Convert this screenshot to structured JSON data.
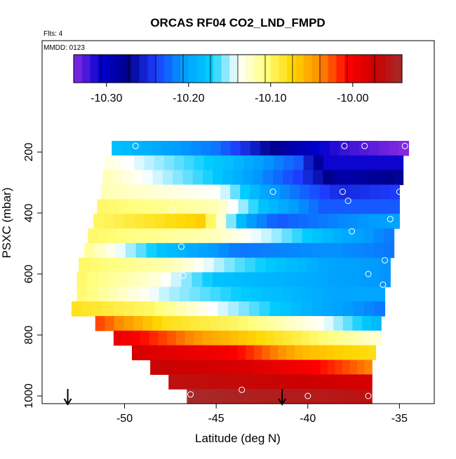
{
  "chart_data": {
    "type": "heatmap",
    "title": "ORCAS RF04 CO2_LND_FMPD",
    "annotations": {
      "flights": "Flts: 4",
      "date": "MMDD: 0123"
    },
    "xlabel": "Latitude (deg N)",
    "ylabel": "PSXC (mbar)",
    "xlim": [
      -54.5,
      -33.1
    ],
    "ylim": [
      1000,
      0
    ],
    "x_ticks": [
      -50,
      -45,
      -40,
      -35
    ],
    "x_tick_labels": [
      "-50",
      "-45",
      "-40",
      "-35"
    ],
    "y_ticks": [
      200,
      400,
      600,
      800,
      1000
    ],
    "y_tick_labels": [
      "200",
      "400",
      "600",
      "800",
      "1000"
    ],
    "colorbar": {
      "range": [
        -10.34,
        -9.94
      ],
      "ticks": [
        -10.3,
        -10.2,
        -10.1,
        -10.0
      ],
      "tick_labels": [
        "-10.30",
        "-10.20",
        "-10.10",
        "-10.00"
      ],
      "colors": [
        "#8a2be2",
        "#0000cd",
        "#00008b",
        "#1e3cff",
        "#009cff",
        "#00ccff",
        "#ffffff",
        "#ffff80",
        "#ffd700",
        "#ff8c00",
        "#ff0000",
        "#cc0000",
        "#a52a2a"
      ]
    },
    "rows": [
      {
        "p": 180,
        "x0": -50.7,
        "x1": -34.5,
        "stops": [
          [
            0,
            -10.18
          ],
          [
            0.35,
            -10.22
          ],
          [
            0.6,
            -10.29
          ],
          [
            0.78,
            -10.32
          ],
          [
            1,
            -10.34
          ]
        ]
      },
      {
        "p": 205,
        "x0": -51.1,
        "x1": -34.8,
        "stops": [
          [
            0,
            -10.13
          ],
          [
            0.4,
            -10.18
          ],
          [
            0.65,
            -10.23
          ],
          [
            0.75,
            -10.31
          ],
          [
            1,
            -10.31
          ]
        ]
      },
      {
        "p": 230,
        "x0": -51.2,
        "x1": -34.8,
        "stops": [
          [
            0,
            -10.12
          ],
          [
            0.35,
            -10.17
          ],
          [
            0.65,
            -10.24
          ],
          [
            0.8,
            -10.29
          ],
          [
            1,
            -10.27
          ]
        ]
      },
      {
        "p": 255,
        "x0": -51.3,
        "x1": -35.0,
        "stops": [
          [
            0,
            -10.12
          ],
          [
            0.4,
            -10.14
          ],
          [
            0.55,
            -10.2
          ],
          [
            0.8,
            -10.25
          ],
          [
            1,
            -10.24
          ]
        ]
      },
      {
        "p": 280,
        "x0": -51.5,
        "x1": -35.0,
        "stops": [
          [
            0,
            -10.1
          ],
          [
            0.4,
            -10.12
          ],
          [
            0.55,
            -10.18
          ],
          [
            0.75,
            -10.23
          ],
          [
            1,
            -10.23
          ]
        ]
      },
      {
        "p": 305,
        "x0": -51.7,
        "x1": -35.0,
        "stops": [
          [
            0,
            -10.1
          ],
          [
            0.35,
            -10.07
          ],
          [
            0.5,
            -10.2
          ],
          [
            0.6,
            -10.23
          ],
          [
            1,
            -10.2
          ]
        ]
      },
      {
        "p": 330,
        "x0": -52.0,
        "x1": -35.3,
        "stops": [
          [
            0,
            -10.1
          ],
          [
            0.4,
            -10.12
          ],
          [
            0.6,
            -10.15
          ],
          [
            0.8,
            -10.19
          ],
          [
            1,
            -10.22
          ]
        ]
      },
      {
        "p": 355,
        "x0": -52.2,
        "x1": -35.3,
        "stops": [
          [
            0,
            -10.11
          ],
          [
            0.25,
            -10.18
          ],
          [
            0.5,
            -10.22
          ],
          [
            0.8,
            -10.21
          ],
          [
            1,
            -10.22
          ]
        ]
      },
      {
        "p": 380,
        "x0": -52.5,
        "x1": -35.5,
        "stops": [
          [
            0,
            -10.1
          ],
          [
            0.3,
            -10.12
          ],
          [
            0.5,
            -10.16
          ],
          [
            0.8,
            -10.2
          ],
          [
            1,
            -10.21
          ]
        ]
      },
      {
        "p": 405,
        "x0": -52.6,
        "x1": -35.5,
        "stops": [
          [
            0,
            -10.1
          ],
          [
            0.25,
            -10.13
          ],
          [
            0.45,
            -10.18
          ],
          [
            0.8,
            -10.2
          ],
          [
            1,
            -10.21
          ]
        ]
      },
      {
        "p": 430,
        "x0": -52.6,
        "x1": -35.8,
        "stops": [
          [
            0,
            -10.1
          ],
          [
            0.3,
            -10.15
          ],
          [
            0.6,
            -10.18
          ],
          [
            0.85,
            -10.2
          ],
          [
            1,
            -10.2
          ]
        ]
      },
      {
        "p": 455,
        "x0": -52.9,
        "x1": -35.8,
        "stops": [
          [
            0,
            -10.08
          ],
          [
            0.25,
            -10.1
          ],
          [
            0.45,
            -10.14
          ],
          [
            0.75,
            -10.19
          ],
          [
            1,
            -10.22
          ]
        ]
      },
      {
        "p": 480,
        "x0": -51.6,
        "x1": -36.0,
        "stops": [
          [
            0,
            -10.02
          ],
          [
            0.25,
            -10.08
          ],
          [
            0.5,
            -10.1
          ],
          [
            0.8,
            -10.14
          ],
          [
            1,
            -10.19
          ]
        ]
      },
      {
        "p": 505,
        "x0": -50.6,
        "x1": -36.0,
        "stops": [
          [
            0,
            -9.99
          ],
          [
            0.35,
            -10.05
          ],
          [
            0.75,
            -10.1
          ],
          [
            1,
            -10.13
          ]
        ]
      },
      {
        "p": 530,
        "x0": -49.6,
        "x1": -36.3,
        "stops": [
          [
            0,
            -9.98
          ],
          [
            0.4,
            -10.0
          ],
          [
            0.7,
            -10.06
          ],
          [
            1,
            -10.08
          ]
        ]
      },
      {
        "p": 555,
        "x0": -48.6,
        "x1": -36.5,
        "stops": [
          [
            0,
            -9.97
          ],
          [
            0.4,
            -9.98
          ],
          [
            0.7,
            -10.0
          ],
          [
            1,
            -10.04
          ]
        ]
      },
      {
        "p": 580,
        "x0": -47.6,
        "x1": -36.5,
        "stops": [
          [
            0,
            -9.96
          ],
          [
            0.5,
            -9.97
          ],
          [
            1,
            -9.98
          ]
        ]
      },
      {
        "p": 605,
        "x0": -46.6,
        "x1": -36.5,
        "stops": [
          [
            0,
            -9.94
          ],
          [
            0.45,
            -9.95
          ],
          [
            0.6,
            -9.95
          ],
          [
            1,
            -9.96
          ]
        ]
      }
    ],
    "markers": [
      {
        "x": -49.4,
        "p": 180
      },
      {
        "x": -38.0,
        "p": 180
      },
      {
        "x": -36.9,
        "p": 180
      },
      {
        "x": -34.7,
        "p": 180
      },
      {
        "x": -41.9,
        "p": 330
      },
      {
        "x": -38.1,
        "p": 330
      },
      {
        "x": -35.0,
        "p": 330
      },
      {
        "x": -37.8,
        "p": 360
      },
      {
        "x": -47.4,
        "p": 390
      },
      {
        "x": -35.5,
        "p": 420
      },
      {
        "x": -37.6,
        "p": 460
      },
      {
        "x": -46.9,
        "p": 510
      },
      {
        "x": -35.8,
        "p": 555
      },
      {
        "x": -46.8,
        "p": 605
      },
      {
        "x": -36.7,
        "p": 600
      },
      {
        "x": -35.9,
        "p": 635
      },
      {
        "x": -46.4,
        "p": 995
      },
      {
        "x": -43.6,
        "p": 980
      },
      {
        "x": -40.0,
        "p": 1000
      },
      {
        "x": -36.7,
        "p": 1000
      }
    ],
    "arrows": [
      {
        "x": -53.1
      },
      {
        "x": -41.4
      }
    ]
  }
}
